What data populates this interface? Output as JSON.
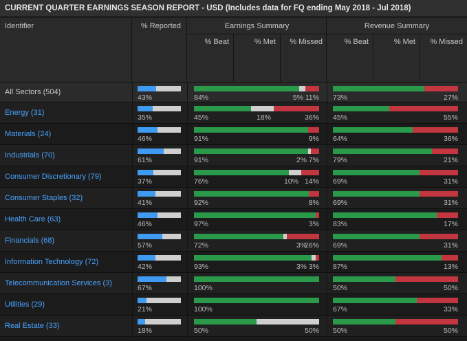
{
  "title": "CURRENT QUARTER EARNINGS SEASON REPORT - USD (Includes data for FQ ending May 2018 - Jul 2018)",
  "headers": {
    "identifier": "Identifier",
    "reported": "% Reported",
    "earnings": "Earnings Summary",
    "revenue": "Revenue Summary",
    "beat": "% Beat",
    "met": "% Met",
    "missed": "% Missed"
  },
  "colors": {
    "reported": "#3f9bf2",
    "beat": "#2a9a4a",
    "met": "#cfcfcf",
    "missed": "#c1363f",
    "remaining": "#cfcfcf"
  },
  "rows": [
    {
      "name": "All Sectors (504)",
      "reported": 43,
      "reported_label": "43%",
      "e_beat": 84,
      "e_met": 5,
      "e_missed": 11,
      "e_beat_label": "84%",
      "e_met_label": "5%",
      "e_missed_label": "11%",
      "r_beat": 73,
      "r_missed": 27,
      "r_beat_label": "73%",
      "r_missed_label": "27%"
    },
    {
      "name": "Energy (31)",
      "reported": 35,
      "reported_label": "35%",
      "e_beat": 45,
      "e_met": 18,
      "e_missed": 36,
      "e_beat_label": "45%",
      "e_met_label": "18%",
      "e_missed_label": "36%",
      "r_beat": 45,
      "r_missed": 55,
      "r_beat_label": "45%",
      "r_missed_label": "55%"
    },
    {
      "name": "Materials (24)",
      "reported": 46,
      "reported_label": "46%",
      "e_beat": 91,
      "e_met": 0,
      "e_missed": 9,
      "e_beat_label": "91%",
      "e_met_label": "",
      "e_missed_label": "9%",
      "r_beat": 64,
      "r_missed": 36,
      "r_beat_label": "64%",
      "r_missed_label": "36%"
    },
    {
      "name": "Industrials (70)",
      "reported": 61,
      "reported_label": "61%",
      "e_beat": 91,
      "e_met": 2,
      "e_missed": 7,
      "e_beat_label": "91%",
      "e_met_label": "2%",
      "e_missed_label": "7%",
      "r_beat": 79,
      "r_missed": 21,
      "r_beat_label": "79%",
      "r_missed_label": "21%"
    },
    {
      "name": "Consumer Discretionary (79)",
      "reported": 37,
      "reported_label": "37%",
      "e_beat": 76,
      "e_met": 10,
      "e_missed": 14,
      "e_beat_label": "76%",
      "e_met_label": "10%",
      "e_missed_label": "14%",
      "r_beat": 69,
      "r_missed": 31,
      "r_beat_label": "69%",
      "r_missed_label": "31%"
    },
    {
      "name": "Consumer Staples (32)",
      "reported": 41,
      "reported_label": "41%",
      "e_beat": 92,
      "e_met": 0,
      "e_missed": 8,
      "e_beat_label": "92%",
      "e_met_label": "",
      "e_missed_label": "8%",
      "r_beat": 69,
      "r_missed": 31,
      "r_beat_label": "69%",
      "r_missed_label": "31%"
    },
    {
      "name": "Health Care (63)",
      "reported": 46,
      "reported_label": "46%",
      "e_beat": 97,
      "e_met": 0,
      "e_missed": 3,
      "e_beat_label": "97%",
      "e_met_label": "",
      "e_missed_label": "3%",
      "r_beat": 83,
      "r_missed": 17,
      "r_beat_label": "83%",
      "r_missed_label": "17%"
    },
    {
      "name": "Financials (68)",
      "reported": 57,
      "reported_label": "57%",
      "e_beat": 72,
      "e_met": 3,
      "e_missed": 26,
      "e_beat_label": "72%",
      "e_met_label": "3%",
      "e_missed_label": "26%",
      "r_beat": 69,
      "r_missed": 31,
      "r_beat_label": "69%",
      "r_missed_label": "31%"
    },
    {
      "name": "Information Technology (72)",
      "reported": 42,
      "reported_label": "42%",
      "e_beat": 93,
      "e_met": 3,
      "e_missed": 3,
      "e_beat_label": "93%",
      "e_met_label": "3%",
      "e_missed_label": "3%",
      "r_beat": 87,
      "r_missed": 13,
      "r_beat_label": "87%",
      "r_missed_label": "13%"
    },
    {
      "name": "Telecommunication Services (3)",
      "reported": 67,
      "reported_label": "67%",
      "e_beat": 100,
      "e_met": 0,
      "e_missed": 0,
      "e_beat_label": "100%",
      "e_met_label": "",
      "e_missed_label": "",
      "r_beat": 50,
      "r_missed": 50,
      "r_beat_label": "50%",
      "r_missed_label": "50%"
    },
    {
      "name": "Utilities (29)",
      "reported": 21,
      "reported_label": "21%",
      "e_beat": 100,
      "e_met": 0,
      "e_missed": 0,
      "e_beat_label": "100%",
      "e_met_label": "",
      "e_missed_label": "",
      "r_beat": 67,
      "r_missed": 33,
      "r_beat_label": "67%",
      "r_missed_label": "33%"
    },
    {
      "name": "Real Estate (33)",
      "reported": 18,
      "reported_label": "18%",
      "e_beat": 50,
      "e_met": 50,
      "e_missed": 0,
      "e_beat_label": "50%",
      "e_met_label": "50%",
      "e_missed_label": "",
      "r_beat": 50,
      "r_missed": 50,
      "r_beat_label": "50%",
      "r_missed_label": "50%"
    }
  ]
}
